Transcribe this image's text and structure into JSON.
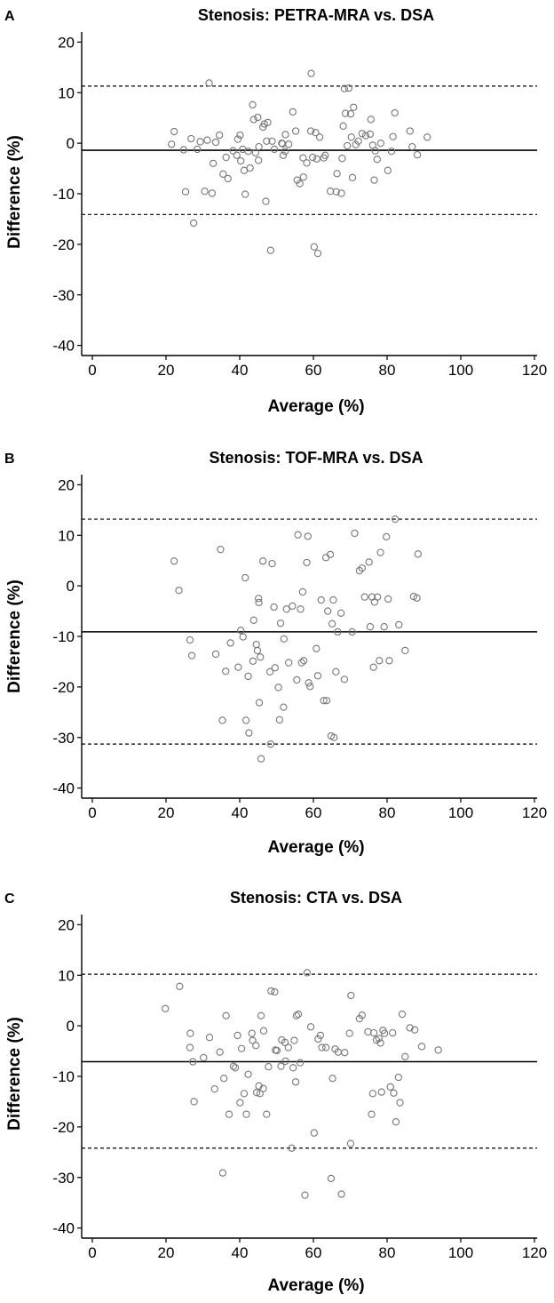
{
  "chart_data": [
    {
      "type": "scatter",
      "panel_label": "A",
      "title": "Stenosis: PETRA-MRA vs. DSA",
      "xlabel": "Average (%)",
      "ylabel": "Difference (%)",
      "xlim": [
        0,
        120
      ],
      "ylim": [
        -42,
        22
      ],
      "xticks": [
        "0",
        "20",
        "40",
        "60",
        "80",
        "100",
        "120"
      ],
      "yticks": [
        "20",
        "10",
        "0",
        "-10",
        "-20",
        "-30",
        "-40"
      ],
      "mean_line": -1.4,
      "upper_loa": 11.3,
      "lower_loa": -14.1,
      "points": [
        [
          21.5,
          -0.2
        ],
        [
          22.2,
          2.3
        ],
        [
          24.8,
          -1.3
        ],
        [
          25.3,
          -9.6
        ],
        [
          26.8,
          0.9
        ],
        [
          27.5,
          -15.8
        ],
        [
          28.5,
          -1.2
        ],
        [
          29.3,
          0.3
        ],
        [
          30.5,
          -9.5
        ],
        [
          31.2,
          0.6
        ],
        [
          31.7,
          11.9
        ],
        [
          32.5,
          -9.9
        ],
        [
          32.8,
          -4
        ],
        [
          33.5,
          0.2
        ],
        [
          34.5,
          1.6
        ],
        [
          35.5,
          -6.1
        ],
        [
          36.3,
          -2.8
        ],
        [
          36.8,
          -7
        ],
        [
          38.2,
          -1.5
        ],
        [
          39.2,
          -2.4
        ],
        [
          39.5,
          0.8
        ],
        [
          40.1,
          1.6
        ],
        [
          40.3,
          -3.5
        ],
        [
          40.8,
          -1.2
        ],
        [
          41.2,
          -5.4
        ],
        [
          41.5,
          -10.1
        ],
        [
          42.3,
          -1.6
        ],
        [
          42.8,
          -4.9
        ],
        [
          43.5,
          7.6
        ],
        [
          43.8,
          4.7
        ],
        [
          44.3,
          -1.9
        ],
        [
          44.9,
          5.1
        ],
        [
          45.1,
          -3.4
        ],
        [
          45.2,
          -0.7
        ],
        [
          46.3,
          3.2
        ],
        [
          46.7,
          3.8
        ],
        [
          47.1,
          -11.5
        ],
        [
          47.3,
          0.4
        ],
        [
          47.6,
          4.1
        ],
        [
          48.4,
          -21.2
        ],
        [
          48.8,
          0.4
        ],
        [
          49.4,
          -1.2
        ],
        [
          51.4,
          0
        ],
        [
          51.6,
          -0.1
        ],
        [
          51.8,
          -2.4
        ],
        [
          52.3,
          -1.6
        ],
        [
          52.4,
          1.7
        ],
        [
          53.3,
          -0.2
        ],
        [
          54.4,
          6.2
        ],
        [
          55.2,
          2.4
        ],
        [
          55.6,
          -7.3
        ],
        [
          56.3,
          -8
        ],
        [
          57.2,
          -2.9
        ],
        [
          57.3,
          -6.7
        ],
        [
          58.2,
          -3.9
        ],
        [
          59.3,
          2.4
        ],
        [
          59.4,
          13.8
        ],
        [
          59.8,
          -2.8
        ],
        [
          60.2,
          -20.5
        ],
        [
          60.6,
          2.1
        ],
        [
          60.9,
          -3.1
        ],
        [
          61.2,
          -21.8
        ],
        [
          61.7,
          1.2
        ],
        [
          62.8,
          -2.9
        ],
        [
          63.2,
          -2.4
        ],
        [
          64.6,
          -9.5
        ],
        [
          66.2,
          -9.6
        ],
        [
          66.4,
          -6
        ],
        [
          67.6,
          -9.9
        ],
        [
          67.8,
          -3
        ],
        [
          68.1,
          3.4
        ],
        [
          68.4,
          10.8
        ],
        [
          68.7,
          5.9
        ],
        [
          69.2,
          -0.5
        ],
        [
          69.6,
          10.9
        ],
        [
          70.1,
          5.8
        ],
        [
          70.3,
          1.2
        ],
        [
          70.6,
          -6.8
        ],
        [
          70.9,
          7.1
        ],
        [
          71.5,
          -0.3
        ],
        [
          72.2,
          0.4
        ],
        [
          73.2,
          1.9
        ],
        [
          74.2,
          1.5
        ],
        [
          75.4,
          1.8
        ],
        [
          75.6,
          4.7
        ],
        [
          76.1,
          -0.4
        ],
        [
          76.5,
          -7.3
        ],
        [
          76.8,
          -1.5
        ],
        [
          77.3,
          -3.2
        ],
        [
          78.3,
          0
        ],
        [
          80.2,
          -5.4
        ],
        [
          81.2,
          -1.6
        ],
        [
          82.1,
          6
        ],
        [
          81.6,
          1.3
        ],
        [
          86.2,
          2.4
        ],
        [
          86.8,
          -0.7
        ],
        [
          88.2,
          -2.3
        ],
        [
          90.9,
          1.2
        ]
      ]
    },
    {
      "type": "scatter",
      "panel_label": "B",
      "title": "Stenosis: TOF-MRA vs. DSA",
      "xlabel": "Average (%)",
      "ylabel": "Difference (%)",
      "xlim": [
        0,
        120
      ],
      "ylim": [
        -42,
        22
      ],
      "xticks": [
        "0",
        "20",
        "40",
        "60",
        "80",
        "100",
        "120"
      ],
      "yticks": [
        "20",
        "10",
        "0",
        "-10",
        "-20",
        "-30",
        "-40"
      ],
      "mean_line": -9.1,
      "upper_loa": 13.2,
      "lower_loa": -31.3,
      "points": [
        [
          22.2,
          4.9
        ],
        [
          23.5,
          -0.9
        ],
        [
          26.5,
          -10.7
        ],
        [
          27,
          -13.8
        ],
        [
          33.5,
          -13.5
        ],
        [
          34.8,
          7.2
        ],
        [
          35.3,
          -26.6
        ],
        [
          36.2,
          -16.9
        ],
        [
          37.5,
          -11.3
        ],
        [
          39.6,
          -16.1
        ],
        [
          40.3,
          -8.8
        ],
        [
          40.9,
          -10.1
        ],
        [
          41.5,
          1.6
        ],
        [
          41.7,
          -26.6
        ],
        [
          42.3,
          -17.9
        ],
        [
          42.5,
          -29.1
        ],
        [
          43.6,
          -14.9
        ],
        [
          43.8,
          -6.8
        ],
        [
          44.5,
          -11.6
        ],
        [
          44.8,
          -12.8
        ],
        [
          45.1,
          -2.5
        ],
        [
          45.2,
          -3.3
        ],
        [
          45.6,
          -14.1
        ],
        [
          45.3,
          -23.1
        ],
        [
          45.8,
          -34.2
        ],
        [
          46.3,
          4.9
        ],
        [
          48.2,
          -17
        ],
        [
          48.4,
          -31.3
        ],
        [
          48.8,
          4.4
        ],
        [
          49.3,
          -4.2
        ],
        [
          49.6,
          -16.2
        ],
        [
          50.5,
          -20.1
        ],
        [
          50.8,
          -26.5
        ],
        [
          51.1,
          -7.4
        ],
        [
          51.9,
          -24
        ],
        [
          52,
          -10.5
        ],
        [
          52.7,
          -4.6
        ],
        [
          53.3,
          -15.2
        ],
        [
          54.3,
          -4
        ],
        [
          55.5,
          -18.6
        ],
        [
          55.8,
          10.1
        ],
        [
          56.5,
          -4.6
        ],
        [
          56.8,
          -15.2
        ],
        [
          57.1,
          -1.2
        ],
        [
          57.4,
          -14.8
        ],
        [
          58.2,
          4.6
        ],
        [
          58.5,
          9.8
        ],
        [
          58.7,
          -19.2
        ],
        [
          59.1,
          -19.9
        ],
        [
          60.8,
          -12.4
        ],
        [
          61.2,
          -17.8
        ],
        [
          62.1,
          -2.8
        ],
        [
          62.8,
          -22.7
        ],
        [
          63.4,
          5.6
        ],
        [
          63.6,
          -22.7
        ],
        [
          63.9,
          -5
        ],
        [
          64.6,
          6.2
        ],
        [
          64.8,
          -29.7
        ],
        [
          65.1,
          -7.5
        ],
        [
          65.4,
          -2.8
        ],
        [
          65.6,
          -30
        ],
        [
          66.1,
          -17
        ],
        [
          66.6,
          -9.1
        ],
        [
          67.5,
          -5.4
        ],
        [
          68.4,
          -18.5
        ],
        [
          71.2,
          10.4
        ],
        [
          70.5,
          -9.1
        ],
        [
          72.5,
          3
        ],
        [
          73.2,
          3.5
        ],
        [
          73.9,
          -2.2
        ],
        [
          75.1,
          4.7
        ],
        [
          75.4,
          -8.1
        ],
        [
          75.9,
          -2.2
        ],
        [
          76.3,
          -16.1
        ],
        [
          76.6,
          -3.2
        ],
        [
          77.4,
          -2.2
        ],
        [
          77.9,
          -14.8
        ],
        [
          78.2,
          6.6
        ],
        [
          79.2,
          -8.1
        ],
        [
          79.8,
          9.7
        ],
        [
          80.3,
          -2.6
        ],
        [
          80.6,
          -14.8
        ],
        [
          82.2,
          13.2
        ],
        [
          83.2,
          -7.7
        ],
        [
          84.9,
          -12.8
        ],
        [
          87.2,
          -2.1
        ],
        [
          88.1,
          -2.4
        ],
        [
          88.4,
          6.3
        ]
      ]
    },
    {
      "type": "scatter",
      "panel_label": "C",
      "title": "Stenosis: CTA vs. DSA",
      "xlabel": "Average (%)",
      "ylabel": "Difference (%)",
      "xlim": [
        0,
        120
      ],
      "ylim": [
        -42,
        22
      ],
      "xticks": [
        "0",
        "20",
        "40",
        "60",
        "80",
        "100",
        "120"
      ],
      "yticks": [
        "20",
        "10",
        "0",
        "-10",
        "-20",
        "-30",
        "-40"
      ],
      "mean_line": -7.1,
      "upper_loa": 10.2,
      "lower_loa": -24.2,
      "points": [
        [
          19.8,
          3.4
        ],
        [
          23.7,
          7.8
        ],
        [
          26.5,
          -4.3
        ],
        [
          26.6,
          -1.5
        ],
        [
          27.3,
          -7.1
        ],
        [
          27.6,
          -15
        ],
        [
          30.2,
          -6.3
        ],
        [
          31.8,
          -2.3
        ],
        [
          33.2,
          -12.5
        ],
        [
          34.6,
          -5.2
        ],
        [
          35.4,
          -29.1
        ],
        [
          35.7,
          -10.4
        ],
        [
          36.3,
          2
        ],
        [
          37.1,
          -17.5
        ],
        [
          38.3,
          -8
        ],
        [
          38.8,
          -8.3
        ],
        [
          39.4,
          -1.9
        ],
        [
          40.1,
          -15.2
        ],
        [
          40.5,
          -4.5
        ],
        [
          41.2,
          -13.4
        ],
        [
          41.8,
          -17.5
        ],
        [
          42.3,
          -9.6
        ],
        [
          43.3,
          -1.5
        ],
        [
          43.5,
          -2.9
        ],
        [
          44.4,
          -3.9
        ],
        [
          44.6,
          -13.2
        ],
        [
          45.2,
          -11.9
        ],
        [
          45.5,
          -13.4
        ],
        [
          45.8,
          2
        ],
        [
          46.4,
          -12.4
        ],
        [
          46.5,
          -1
        ],
        [
          47.3,
          -17.5
        ],
        [
          47.8,
          -8.1
        ],
        [
          48.5,
          6.9
        ],
        [
          49.5,
          6.7
        ],
        [
          49.7,
          -4.8
        ],
        [
          50.1,
          -4.9
        ],
        [
          51.2,
          -8
        ],
        [
          51.4,
          -2.8
        ],
        [
          52.3,
          -3.3
        ],
        [
          52.4,
          -7
        ],
        [
          53.2,
          -4.3
        ],
        [
          54.1,
          -24.2
        ],
        [
          54.5,
          -8.3
        ],
        [
          54.8,
          -2.9
        ],
        [
          55.2,
          -11.1
        ],
        [
          55.4,
          2
        ],
        [
          55.9,
          2.3
        ],
        [
          56.4,
          -7.3
        ],
        [
          57.7,
          -33.5
        ],
        [
          58.3,
          10.5
        ],
        [
          59.3,
          -0.2
        ],
        [
          60.2,
          -21.2
        ],
        [
          61.3,
          -2.6
        ],
        [
          61.9,
          -1.9
        ],
        [
          62.3,
          -4.3
        ],
        [
          63.4,
          -4.3
        ],
        [
          64.8,
          -30.2
        ],
        [
          65.2,
          -10.4
        ],
        [
          65.9,
          -4.6
        ],
        [
          66.7,
          -5.2
        ],
        [
          67.6,
          -33.3
        ],
        [
          68.5,
          -5.3
        ],
        [
          69.8,
          -1.5
        ],
        [
          70.1,
          -23.3
        ],
        [
          70.2,
          6
        ],
        [
          72.5,
          1.4
        ],
        [
          73.2,
          2.1
        ],
        [
          74.8,
          -1.2
        ],
        [
          75.8,
          -17.5
        ],
        [
          76.1,
          -13.4
        ],
        [
          76.4,
          -1.4
        ],
        [
          77.1,
          -2.8
        ],
        [
          77.8,
          -2.5
        ],
        [
          78.2,
          -3.4
        ],
        [
          78.5,
          -13.1
        ],
        [
          78.9,
          -0.9
        ],
        [
          79.3,
          -1.5
        ],
        [
          80.9,
          -12.1
        ],
        [
          81.5,
          -1.4
        ],
        [
          81.8,
          -13.3
        ],
        [
          82.4,
          -19
        ],
        [
          83.1,
          -10.2
        ],
        [
          83.5,
          -15.2
        ],
        [
          84.1,
          2.3
        ],
        [
          84.9,
          -6.1
        ],
        [
          86.2,
          -0.4
        ],
        [
          87.5,
          -0.8
        ],
        [
          89.4,
          -4.1
        ],
        [
          93.9,
          -4.8
        ]
      ]
    }
  ]
}
